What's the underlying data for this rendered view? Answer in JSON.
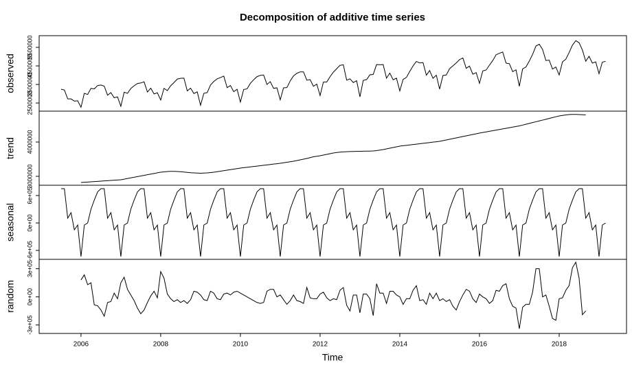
{
  "chart_data": {
    "type": "line",
    "title": "Decomposition of additive time series",
    "xlabel": "Time",
    "xlim": [
      2004.95,
      2019.69
    ],
    "xticks": [
      2006,
      2008,
      2010,
      2012,
      2014,
      2016,
      2018
    ],
    "color": "#000000",
    "x": [
      2005.5,
      2005.583,
      2005.667,
      2005.75,
      2005.833,
      2005.917,
      2006,
      2006.083,
      2006.167,
      2006.25,
      2006.333,
      2006.417,
      2006.5,
      2006.583,
      2006.667,
      2006.75,
      2006.833,
      2006.917,
      2007,
      2007.083,
      2007.167,
      2007.25,
      2007.333,
      2007.417,
      2007.5,
      2007.583,
      2007.667,
      2007.75,
      2007.833,
      2007.917,
      2008,
      2008.083,
      2008.167,
      2008.25,
      2008.333,
      2008.417,
      2008.5,
      2008.583,
      2008.667,
      2008.75,
      2008.833,
      2008.917,
      2009,
      2009.083,
      2009.167,
      2009.25,
      2009.333,
      2009.417,
      2009.5,
      2009.583,
      2009.667,
      2009.75,
      2009.833,
      2009.917,
      2010,
      2010.083,
      2010.167,
      2010.25,
      2010.333,
      2010.417,
      2010.5,
      2010.583,
      2010.667,
      2010.75,
      2010.833,
      2010.917,
      2011,
      2011.083,
      2011.167,
      2011.25,
      2011.333,
      2011.417,
      2011.5,
      2011.583,
      2011.667,
      2011.75,
      2011.833,
      2011.917,
      2012,
      2012.083,
      2012.167,
      2012.25,
      2012.333,
      2012.417,
      2012.5,
      2012.583,
      2012.667,
      2012.75,
      2012.833,
      2012.917,
      2013,
      2013.083,
      2013.167,
      2013.25,
      2013.333,
      2013.417,
      2013.5,
      2013.583,
      2013.667,
      2013.75,
      2013.833,
      2013.917,
      2014,
      2014.083,
      2014.167,
      2014.25,
      2014.333,
      2014.417,
      2014.5,
      2014.583,
      2014.667,
      2014.75,
      2014.833,
      2014.917,
      2015,
      2015.083,
      2015.167,
      2015.25,
      2015.333,
      2015.417,
      2015.5,
      2015.583,
      2015.667,
      2015.75,
      2015.833,
      2015.917,
      2016,
      2016.083,
      2016.167,
      2016.25,
      2016.333,
      2016.417,
      2016.5,
      2016.583,
      2016.667,
      2016.75,
      2016.833,
      2016.917,
      2017,
      2017.083,
      2017.167,
      2017.25,
      2017.333,
      2017.417,
      2017.5,
      2017.583,
      2017.667,
      2017.75,
      2017.833,
      2017.917,
      2018,
      2018.083,
      2018.167,
      2018.25,
      2018.333,
      2018.417,
      2018.5,
      2018.583,
      2018.667,
      2018.75,
      2018.833,
      2018.917,
      2019,
      2019.083,
      2019.167
    ],
    "panels": [
      {
        "ylabel": "observed",
        "ylim": [
          2060000,
          6130000
        ],
        "yticks": [
          2500000,
          3500000,
          4500000,
          5500000
        ],
        "values": [
          3240000,
          3200000,
          2720000,
          2720000,
          2600000,
          2620000,
          2270000,
          3020000,
          2960000,
          3290000,
          3260000,
          3440000,
          3470000,
          3410000,
          2920000,
          3060000,
          2780000,
          2830000,
          2320000,
          3080000,
          3020000,
          3280000,
          3430000,
          3550000,
          3580000,
          3640000,
          3090000,
          3300000,
          2990000,
          3050000,
          2660000,
          3290000,
          3170000,
          3430000,
          3600000,
          3790000,
          3830000,
          3840000,
          3150000,
          3300000,
          3010000,
          3100000,
          2380000,
          3020000,
          3060000,
          3470000,
          3660000,
          3800000,
          3870000,
          3950000,
          3330000,
          3440000,
          3110000,
          3240000,
          2550000,
          3230000,
          3260000,
          3560000,
          3750000,
          3920000,
          3990000,
          4010000,
          3500000,
          3650000,
          3290000,
          3320000,
          2670000,
          3320000,
          3330000,
          3690000,
          3960000,
          4100000,
          4180000,
          4180000,
          3730000,
          3760000,
          3400000,
          3520000,
          2900000,
          3630000,
          3630000,
          3920000,
          4160000,
          4350000,
          4530000,
          4560000,
          3730000,
          3800000,
          3600000,
          3700000,
          2830000,
          3720000,
          3760000,
          4020000,
          4040000,
          4570000,
          4560000,
          4570000,
          3840000,
          4110000,
          3750000,
          3840000,
          3150000,
          3770000,
          3880000,
          4200000,
          4500000,
          4740000,
          4660000,
          4680000,
          4000000,
          4250000,
          3830000,
          4000000,
          3250000,
          3980000,
          4010000,
          4350000,
          4500000,
          4660000,
          4840000,
          4930000,
          4370000,
          4490000,
          4050000,
          4140000,
          3560000,
          4230000,
          4280000,
          4540000,
          4790000,
          5100000,
          5180000,
          5250000,
          4650000,
          4620000,
          4190000,
          4290000,
          3400000,
          4340000,
          4440000,
          4760000,
          5120000,
          5570000,
          5670000,
          5390000,
          4790000,
          4810000,
          4330000,
          4440000,
          4010000,
          4720000,
          4860000,
          5220000,
          5620000,
          5860000,
          5750000,
          5360000,
          4750000,
          5020000,
          4650000,
          4720000,
          4080000,
          4700000,
          4750000
        ]
      },
      {
        "ylabel": "trend",
        "ylim": [
          2740000,
          4900000
        ],
        "yticks": [
          3000000,
          4000000
        ],
        "values": [
          null,
          null,
          null,
          null,
          null,
          null,
          2820000,
          2827000,
          2833000,
          2840000,
          2847000,
          2853000,
          2860000,
          2867000,
          2873000,
          2880000,
          2887000,
          2893000,
          2900000,
          2918000,
          2937000,
          2955000,
          2973000,
          2992000,
          3010000,
          3028000,
          3047000,
          3065000,
          3083000,
          3102000,
          3120000,
          3130000,
          3140000,
          3145000,
          3145000,
          3140000,
          3135000,
          3125000,
          3115000,
          3105000,
          3100000,
          3095000,
          3090000,
          3095000,
          3100000,
          3110000,
          3120000,
          3135000,
          3150000,
          3165000,
          3180000,
          3195000,
          3210000,
          3225000,
          3240000,
          3252000,
          3263000,
          3275000,
          3287000,
          3298000,
          3310000,
          3322000,
          3333000,
          3345000,
          3357000,
          3368000,
          3380000,
          3395000,
          3410000,
          3425000,
          3440000,
          3460000,
          3480000,
          3500000,
          3520000,
          3545000,
          3570000,
          3585000,
          3600000,
          3620000,
          3640000,
          3660000,
          3680000,
          3695000,
          3705000,
          3712000,
          3718000,
          3722000,
          3725000,
          3728000,
          3730000,
          3732000,
          3734000,
          3736000,
          3740000,
          3750000,
          3765000,
          3780000,
          3800000,
          3820000,
          3840000,
          3860000,
          3880000,
          3892000,
          3903000,
          3915000,
          3927000,
          3938000,
          3950000,
          3962000,
          3973000,
          3985000,
          3997000,
          4008000,
          4020000,
          4040000,
          4060000,
          4080000,
          4100000,
          4120000,
          4140000,
          4160000,
          4180000,
          4200000,
          4220000,
          4240000,
          4260000,
          4278000,
          4295000,
          4313000,
          4330000,
          4348000,
          4365000,
          4383000,
          4400000,
          4418000,
          4435000,
          4453000,
          4470000,
          4494000,
          4518000,
          4543000,
          4567000,
          4591000,
          4615000,
          4639000,
          4663000,
          4688000,
          4712000,
          4736000,
          4760000,
          4775000,
          4790000,
          4800000,
          4805000,
          4805000,
          4800000,
          4795000,
          4790000,
          null,
          null,
          null,
          null,
          null,
          null
        ]
      },
      {
        "ylabel": "seasonal",
        "ylim": [
          -795000,
          825000
        ],
        "yticks": [
          {
            "value": -600000,
            "label": "-6e+05"
          },
          {
            "value": 0,
            "label": "0e+00"
          },
          {
            "value": 600000,
            "label": "6e+05"
          }
        ],
        "values": [
          750000,
          750000,
          105000,
          225000,
          -150000,
          -45000,
          -735000,
          -45000,
          0,
          300000,
          500000,
          680000,
          750000,
          750000,
          105000,
          225000,
          -150000,
          -45000,
          -735000,
          -45000,
          0,
          300000,
          500000,
          680000,
          750000,
          750000,
          105000,
          225000,
          -150000,
          -45000,
          -735000,
          -45000,
          0,
          300000,
          500000,
          680000,
          750000,
          750000,
          105000,
          225000,
          -150000,
          -45000,
          -735000,
          -45000,
          0,
          300000,
          500000,
          680000,
          750000,
          750000,
          105000,
          225000,
          -150000,
          -45000,
          -735000,
          -45000,
          0,
          300000,
          500000,
          680000,
          750000,
          750000,
          105000,
          225000,
          -150000,
          -45000,
          -735000,
          -45000,
          0,
          300000,
          500000,
          680000,
          750000,
          750000,
          105000,
          225000,
          -150000,
          -45000,
          -735000,
          -45000,
          0,
          300000,
          500000,
          680000,
          750000,
          750000,
          105000,
          225000,
          -150000,
          -45000,
          -735000,
          -45000,
          0,
          300000,
          500000,
          680000,
          750000,
          750000,
          105000,
          225000,
          -150000,
          -45000,
          -735000,
          -45000,
          0,
          300000,
          500000,
          680000,
          750000,
          750000,
          105000,
          225000,
          -150000,
          -45000,
          -735000,
          -45000,
          0,
          300000,
          500000,
          680000,
          750000,
          750000,
          105000,
          225000,
          -150000,
          -45000,
          -735000,
          -45000,
          0,
          300000,
          500000,
          680000,
          750000,
          750000,
          105000,
          225000,
          -150000,
          -45000,
          -735000,
          -45000,
          0,
          300000,
          500000,
          680000,
          750000,
          750000,
          105000,
          225000,
          -150000,
          -45000,
          -735000,
          -45000,
          0,
          300000,
          500000,
          680000,
          750000,
          750000,
          105000,
          225000,
          -150000,
          -45000,
          -735000,
          -45000,
          0
        ]
      },
      {
        "ylabel": "random",
        "ylim": [
          -390000,
          400000
        ],
        "yticks": [
          {
            "value": -300000,
            "label": "-3e+05"
          },
          {
            "value": 0,
            "label": "0e+00"
          },
          {
            "value": 300000,
            "label": "3e+05"
          }
        ],
        "values": [
          null,
          null,
          null,
          null,
          null,
          null,
          180000,
          235000,
          130000,
          150000,
          -85000,
          -95000,
          -140000,
          -207000,
          -60000,
          -50000,
          40000,
          -20000,
          150000,
          210000,
          80000,
          20000,
          -40000,
          -120000,
          -180000,
          -140000,
          -60000,
          10000,
          60000,
          -10000,
          270000,
          200000,
          30000,
          -20000,
          -50000,
          -30000,
          -60000,
          -40000,
          -70000,
          -30000,
          60000,
          50000,
          20000,
          -30000,
          -40000,
          60000,
          40000,
          -20000,
          -30000,
          30000,
          40000,
          20000,
          50000,
          60000,
          40000,
          20000,
          0,
          -20000,
          -40000,
          -60000,
          -70000,
          -60000,
          60000,
          80000,
          80000,
          0,
          20000,
          -30000,
          -80000,
          -40000,
          20000,
          -40000,
          -50000,
          -70000,
          100000,
          -10000,
          -20000,
          -20000,
          30000,
          50000,
          -10000,
          -40000,
          -20000,
          -30000,
          70000,
          100000,
          -90000,
          -150000,
          20000,
          20000,
          -170000,
          30000,
          30000,
          -20000,
          -200000,
          140000,
          40000,
          40000,
          -70000,
          60000,
          60000,
          20000,
          0,
          -80000,
          -20000,
          -20000,
          70000,
          120000,
          -40000,
          -30000,
          -80000,
          40000,
          -20000,
          40000,
          -40000,
          -20000,
          -50000,
          -30000,
          -100000,
          -140000,
          -50000,
          20000,
          80000,
          60000,
          -20000,
          -60000,
          30000,
          0,
          -20000,
          -70000,
          -40000,
          70000,
          60000,
          120000,
          140000,
          -20000,
          -100000,
          -120000,
          -340000,
          -110000,
          -80000,
          -80000,
          50000,
          300000,
          300000,
          0,
          20000,
          -100000,
          -230000,
          -250000,
          -20000,
          -10000,
          70000,
          120000,
          310000,
          370000,
          200000,
          -190000,
          -150000,
          null,
          null,
          null,
          null,
          null,
          null
        ]
      }
    ]
  }
}
